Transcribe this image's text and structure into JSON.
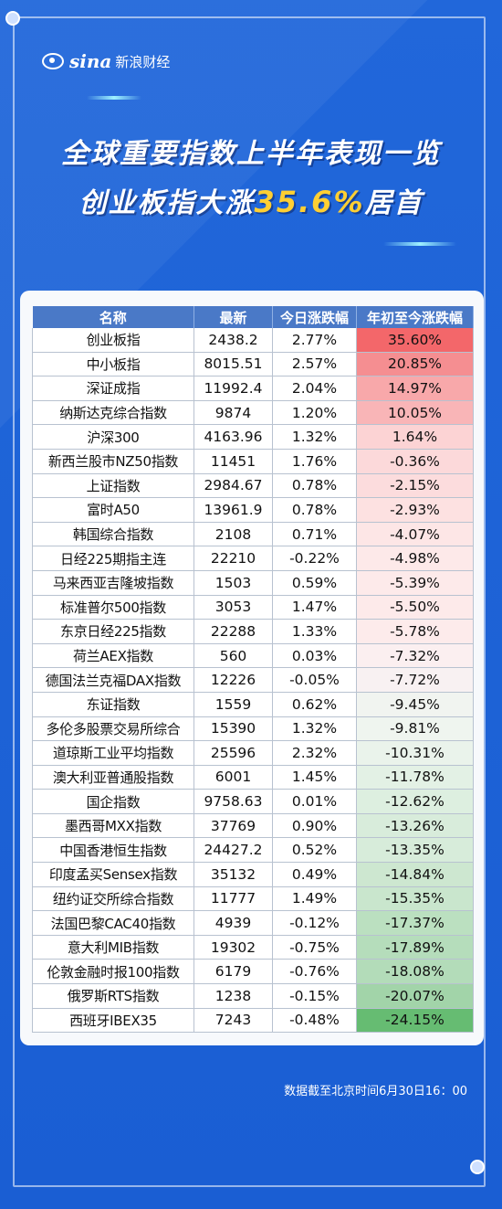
{
  "brand": {
    "text": "sina",
    "zh": "新浪财经"
  },
  "title_line1": "全球重要指数上半年表现一览",
  "title_line2_prefix": "创业板指大涨",
  "title_line2_highlight": "35.6%",
  "title_line2_suffix": "居首",
  "table": {
    "headers": [
      "名称",
      "最新",
      "今日涨跌幅",
      "年初至今涨跌幅"
    ],
    "rows": [
      [
        "创业板指",
        "2438.2",
        "2.77%",
        "35.60%"
      ],
      [
        "中小板指",
        "8015.51",
        "2.57%",
        "20.85%"
      ],
      [
        "深证成指",
        "11992.4",
        "2.04%",
        "14.97%"
      ],
      [
        "纳斯达克综合指数",
        "9874",
        "1.20%",
        "10.05%"
      ],
      [
        "沪深300",
        "4163.96",
        "1.32%",
        "1.64%"
      ],
      [
        "新西兰股市NZ50指数",
        "11451",
        "1.76%",
        "-0.36%"
      ],
      [
        "上证指数",
        "2984.67",
        "0.78%",
        "-2.15%"
      ],
      [
        "富时A50",
        "13961.9",
        "0.78%",
        "-2.93%"
      ],
      [
        "韩国综合指数",
        "2108",
        "0.71%",
        "-4.07%"
      ],
      [
        "日经225期指主连",
        "22210",
        "-0.22%",
        "-4.98%"
      ],
      [
        "马来西亚吉隆坡指数",
        "1503",
        "0.59%",
        "-5.39%"
      ],
      [
        "标准普尔500指数",
        "3053",
        "1.47%",
        "-5.50%"
      ],
      [
        "东京日经225指数",
        "22288",
        "1.33%",
        "-5.78%"
      ],
      [
        "荷兰AEX指数",
        "560",
        "0.03%",
        "-7.32%"
      ],
      [
        "德国法兰克福DAX指数",
        "12226",
        "-0.05%",
        "-7.72%"
      ],
      [
        "东证指数",
        "1559",
        "0.62%",
        "-9.45%"
      ],
      [
        "多伦多股票交易所综合",
        "15390",
        "1.32%",
        "-9.81%"
      ],
      [
        "道琼斯工业平均指数",
        "25596",
        "2.32%",
        "-10.31%"
      ],
      [
        "澳大利亚普通股指数",
        "6001",
        "1.45%",
        "-11.78%"
      ],
      [
        "国企指数",
        "9758.63",
        "0.01%",
        "-12.62%"
      ],
      [
        "墨西哥MXX指数",
        "37769",
        "0.90%",
        "-13.26%"
      ],
      [
        "中国香港恒生指数",
        "24427.2",
        "0.52%",
        "-13.35%"
      ],
      [
        "印度孟买Sensex指数",
        "35132",
        "0.49%",
        "-14.84%"
      ],
      [
        "纽约证交所综合指数",
        "11777",
        "1.49%",
        "-15.35%"
      ],
      [
        "法国巴黎CAC40指数",
        "4939",
        "-0.12%",
        "-17.37%"
      ],
      [
        "意大利MIB指数",
        "19302",
        "-0.75%",
        "-17.89%"
      ],
      [
        "伦敦金融时报100指数",
        "6179",
        "-0.76%",
        "-18.08%"
      ],
      [
        "俄罗斯RTS指数",
        "1238",
        "-0.15%",
        "-20.07%"
      ],
      [
        "西班牙IBEX35",
        "7243",
        "-0.48%",
        "-24.15%"
      ]
    ],
    "ytd_cell_colors": [
      "#f3676a",
      "#f58e91",
      "#f8a8aa",
      "#f9b5b7",
      "#fcd3d4",
      "#fcd9da",
      "#fcdcdd",
      "#fde1e1",
      "#fde6e6",
      "#fde9e9",
      "#fdeaea",
      "#fdeaea",
      "#fdebeb",
      "#fbeff0",
      "#f8f1f2",
      "#f1f4f0",
      "#eff5ef",
      "#eaf3eb",
      "#e3f1e5",
      "#ddefe0",
      "#d8ecdb",
      "#d7ecda",
      "#cde7d0",
      "#c9e6cd",
      "#bbe0c0",
      "#b5ddbb",
      "#b3dcb9",
      "#a2d4a9",
      "#66bc72"
    ]
  },
  "footnote": "数据截至北京时间6月30日16：00"
}
